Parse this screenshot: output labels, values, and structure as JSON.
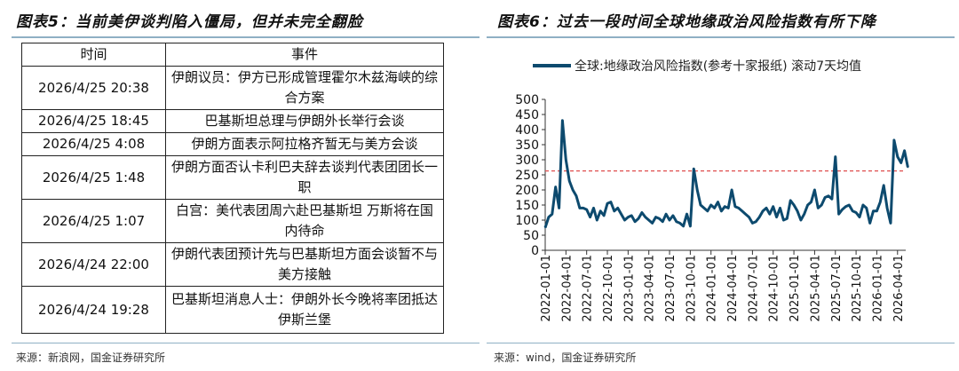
{
  "left": {
    "title": "图表5：当前美伊谈判陷入僵局，但并未完全翻脸",
    "headers": [
      "时间",
      "事件"
    ],
    "rows": [
      {
        "time": "2026/4/25 20:38",
        "event": "伊朗议员：伊方已形成管理霍尔木兹海峡的综合方案"
      },
      {
        "time": "2026/4/25 18:45",
        "event": "巴基斯坦总理与伊朗外长举行会谈"
      },
      {
        "time": "2026/4/25 4:08",
        "event": "伊朗方面表示阿拉格齐暂无与美方会谈"
      },
      {
        "time": "2026/4/25 1:48",
        "event": "伊朗方面否认卡利巴夫辞去谈判代表团团长一职"
      },
      {
        "time": "2026/4/25 1:07",
        "event": "白宫：美代表团周六赴巴基斯坦 万斯将在国内待命"
      },
      {
        "time": "2026/4/24 22:00",
        "event": "伊朗代表团预计先与巴基斯坦方面会谈暂不与美方接触"
      },
      {
        "time": "2026/4/24 19:28",
        "event": "巴基斯坦消息人士：伊朗外长今晚将率团抵达伊斯兰堡"
      }
    ],
    "source": "来源：新浪网，国金证券研究所"
  },
  "right": {
    "title": "图表6：过去一段时间全球地缘政治风险指数有所下降",
    "source": "来源：wind，国金证券研究所"
  },
  "chart_data": {
    "type": "line",
    "title": "",
    "legend": "全球:地缘政治风险指数(参考十家报纸) 滚动7天均值",
    "legend_placement": "top",
    "ylim": [
      0,
      500
    ],
    "yticks": [
      0,
      50,
      100,
      150,
      200,
      250,
      300,
      350,
      400,
      450,
      500
    ],
    "xticks": [
      "2022-01-01",
      "2022-04-01",
      "2022-07-01",
      "2022-10-01",
      "2023-01-01",
      "2023-04-01",
      "2023-07-01",
      "2023-10-01",
      "2024-01-01",
      "2024-04-01",
      "2024-07-01",
      "2024-10-01",
      "2025-01-01",
      "2025-04-01",
      "2025-07-01",
      "2025-10-01",
      "2026-01-01",
      "2026-04-01"
    ],
    "x_start": "2022-01-01",
    "step_months": 0.5,
    "reference_line": 263,
    "line_color": "#0d4a6e",
    "ref_color": "#e05555",
    "values": [
      75,
      110,
      120,
      210,
      140,
      430,
      300,
      230,
      200,
      180,
      140,
      140,
      135,
      110,
      140,
      100,
      130,
      115,
      155,
      160,
      130,
      140,
      120,
      100,
      110,
      115,
      95,
      105,
      125,
      110,
      100,
      90,
      110,
      105,
      95,
      120,
      100,
      115,
      95,
      90,
      80,
      120,
      80,
      270,
      200,
      150,
      140,
      130,
      150,
      140,
      160,
      130,
      145,
      140,
      200,
      145,
      140,
      130,
      120,
      110,
      90,
      95,
      110,
      130,
      140,
      120,
      145,
      110,
      140,
      100,
      105,
      165,
      150,
      130,
      100,
      120,
      150,
      160,
      200,
      140,
      150,
      175,
      180,
      170,
      310,
      120,
      135,
      145,
      150,
      130,
      125,
      110,
      150,
      140,
      90,
      130,
      130,
      160,
      215,
      140,
      90,
      365,
      310,
      290,
      330,
      275
    ]
  }
}
